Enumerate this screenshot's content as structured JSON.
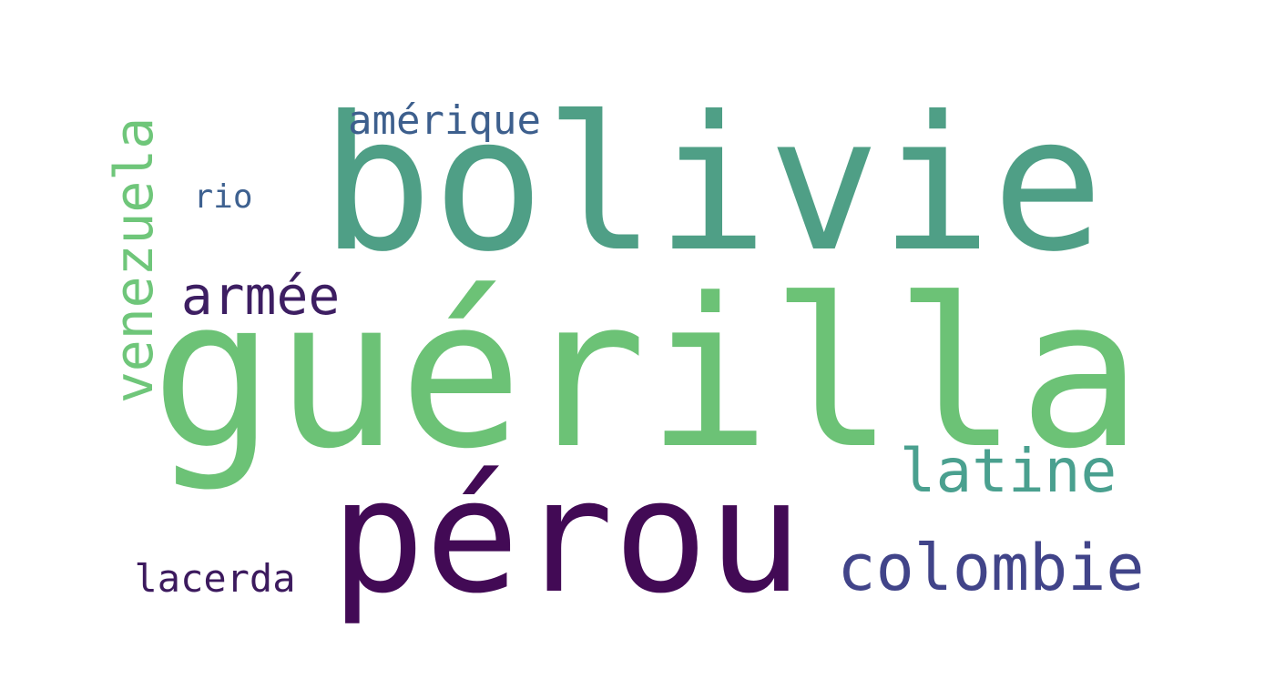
{
  "words": [
    {
      "key": "guerilla",
      "text": "guérilla",
      "color": "#6cc276"
    },
    {
      "key": "bolivie",
      "text": "bolivie",
      "color": "#4f9f86"
    },
    {
      "key": "perou",
      "text": "pérou",
      "color": "#420a55"
    },
    {
      "key": "venezuela",
      "text": "venezuela",
      "color": "#6fc67a"
    },
    {
      "key": "colombie",
      "text": "colombie",
      "color": "#414489"
    },
    {
      "key": "latine",
      "text": "latine",
      "color": "#4aa08f"
    },
    {
      "key": "armee",
      "text": "armée",
      "color": "#3d1e62"
    },
    {
      "key": "amerique",
      "text": "amérique",
      "color": "#3d5f8d"
    },
    {
      "key": "lacerda",
      "text": "lacerda",
      "color": "#3c1a5e"
    },
    {
      "key": "rio",
      "text": "rio",
      "color": "#3e6190"
    }
  ]
}
